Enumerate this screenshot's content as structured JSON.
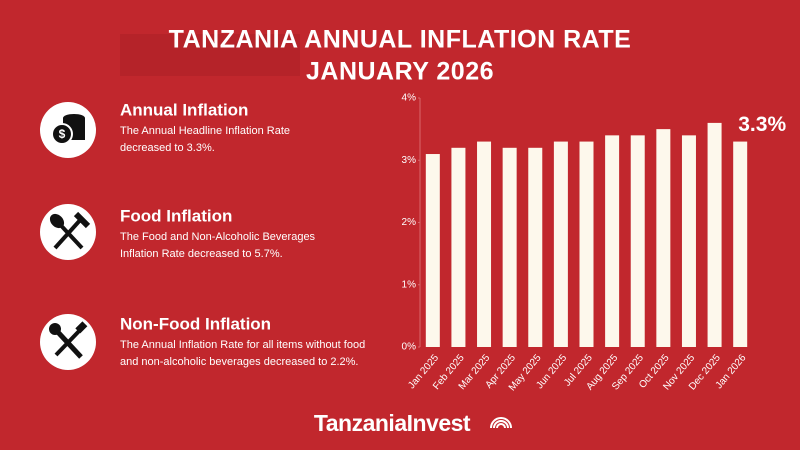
{
  "chart_data": {
    "type": "bar",
    "title": [
      "TANZANIA ANNUAL INFLATION RATE",
      "JANUARY 2026"
    ],
    "categories": [
      "Jan 2025",
      "Feb 2025",
      "Mar 2025",
      "Apr 2025",
      "May 2025",
      "Jun 2025",
      "Jul 2025",
      "Aug 2025",
      "Sep 2025",
      "Oct 2025",
      "Nov 2025",
      "Dec 2025",
      "Jan 2026"
    ],
    "values": [
      3.1,
      3.2,
      3.3,
      3.2,
      3.2,
      3.3,
      3.3,
      3.4,
      3.4,
      3.5,
      3.4,
      3.6,
      3.3
    ],
    "value_labels": [
      null,
      null,
      null,
      null,
      null,
      null,
      null,
      null,
      null,
      null,
      null,
      null,
      "3.3%"
    ],
    "color": "#fdf8ec",
    "ylim": [
      0,
      4
    ],
    "yticks": [
      {
        "value": 0,
        "label": "0%"
      },
      {
        "value": 1,
        "label": "1%"
      },
      {
        "value": 2,
        "label": "2%"
      },
      {
        "value": 3,
        "label": "3%"
      },
      {
        "value": 4,
        "label": "4%"
      }
    ],
    "grid": false
  },
  "panels": [
    {
      "heading": "Annual Inflation",
      "lines": [
        "The Annual Headline Inflation Rate",
        "decreased to 3.3%."
      ]
    },
    {
      "heading": "Food Inflation",
      "lines": [
        "The Food and Non-Alcoholic Beverages",
        "Inflation Rate decreased to 5.7%."
      ]
    },
    {
      "heading": "Non-Food Inflation",
      "lines": [
        "The Annual Inflation Rate for all items without food",
        "and non-alcoholic beverages decreased to 2.2%."
      ]
    }
  ],
  "logo": "TanzaniaInvest"
}
